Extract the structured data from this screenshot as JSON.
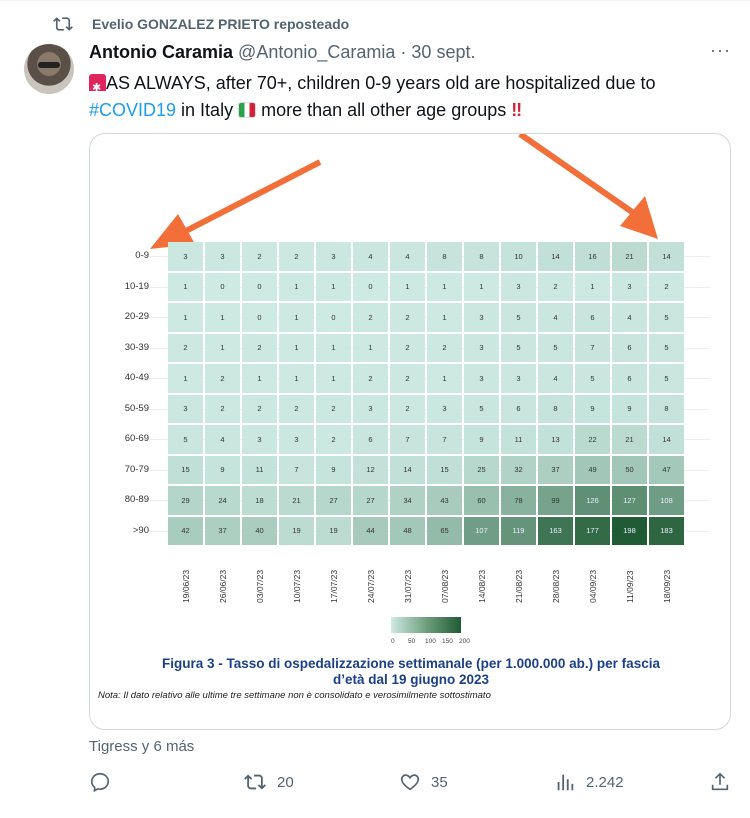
{
  "repost": {
    "icon": "repost-icon",
    "label": "Evelio GONZALEZ PRIETO reposteado"
  },
  "tweet": {
    "author_name": "Antonio Caramia",
    "handle": "@Antonio_Caramia",
    "date": "· 30 sept.",
    "more_icon": "more-icon",
    "text_1": "AS ALWAYS, after 70+, children 0-9 years old are hospitalized due to",
    "hashtag": "#COVID19",
    "text_2": " in Italy ",
    "text_3": " more than all other age groups ",
    "bang": "‼"
  },
  "likers": "Tigress y 6 más",
  "actions": {
    "reply": "",
    "retweets": "20",
    "likes": "35",
    "views": "2.242"
  },
  "chart_data": {
    "type": "heatmap",
    "rows": [
      "0-9",
      "10-19",
      "20-29",
      "30-39",
      "40-49",
      "50-59",
      "60-69",
      "70-79",
      "80-89",
      ">90"
    ],
    "columns": [
      "19/06/23",
      "26/06/23",
      "03/07/23",
      "10/07/23",
      "17/07/23",
      "24/07/23",
      "31/07/23",
      "07/08/23",
      "14/08/23",
      "21/08/23",
      "28/08/23",
      "04/09/23",
      "11/09/23",
      "18/09/23"
    ],
    "values": [
      [
        3,
        3,
        2,
        2,
        3,
        4,
        4,
        8,
        8,
        10,
        14,
        16,
        21,
        14
      ],
      [
        1,
        0,
        0,
        1,
        1,
        0,
        1,
        1,
        1,
        3,
        2,
        1,
        3,
        2
      ],
      [
        1,
        1,
        0,
        1,
        0,
        2,
        2,
        1,
        3,
        5,
        4,
        6,
        4,
        5
      ],
      [
        2,
        1,
        2,
        1,
        1,
        1,
        2,
        2,
        3,
        5,
        5,
        7,
        6,
        5
      ],
      [
        1,
        2,
        1,
        1,
        1,
        2,
        2,
        1,
        3,
        3,
        4,
        5,
        6,
        5
      ],
      [
        3,
        2,
        2,
        2,
        2,
        3,
        2,
        3,
        5,
        6,
        8,
        9,
        9,
        8
      ],
      [
        5,
        4,
        3,
        3,
        2,
        6,
        7,
        7,
        9,
        11,
        13,
        22,
        21,
        14
      ],
      [
        15,
        9,
        11,
        7,
        9,
        12,
        14,
        15,
        25,
        32,
        37,
        49,
        50,
        47
      ],
      [
        29,
        24,
        18,
        21,
        27,
        27,
        34,
        43,
        60,
        78,
        99,
        126,
        127,
        108
      ],
      [
        42,
        37,
        40,
        19,
        19,
        44,
        48,
        65,
        107,
        119,
        163,
        177,
        198,
        183
      ]
    ],
    "color_scale": {
      "min": 0,
      "max": 200,
      "low_color": "#cdeae3",
      "high_color": "#1f5a33",
      "ticks": [
        "0",
        "50",
        "100",
        "150",
        "200"
      ]
    },
    "title": "Figura 3 - Tasso di ospedalizzazione settimanale (per 1.000.000 ab.) per fascia d’età dal 19 giugno 2023",
    "note": "Nota: Il dato relativo alle ultime tre settimane non è consolidato e verosimilmente sottostimato",
    "annotation_color": "#f26f3a"
  }
}
